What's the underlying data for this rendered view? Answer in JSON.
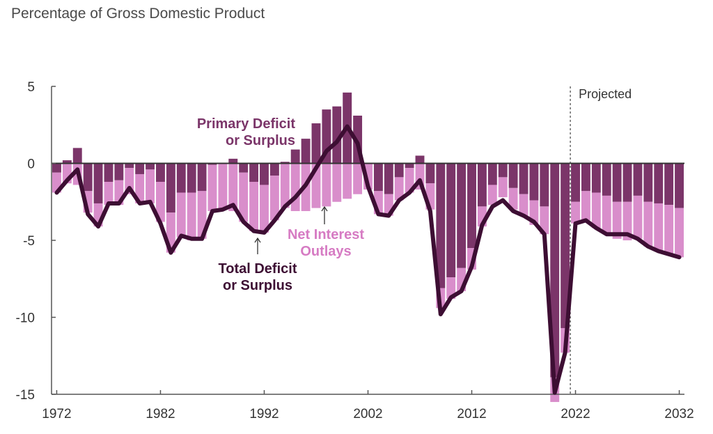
{
  "chart_data": {
    "type": "bar",
    "subtitle": "Percentage of Gross Domestic Product",
    "ylim": [
      -15,
      5
    ],
    "yticks": [
      5,
      0,
      -5,
      -10,
      -15
    ],
    "xticks": [
      1972,
      1982,
      1992,
      2002,
      2012,
      2022,
      2032
    ],
    "projected_from": 2022,
    "projected_label": "Projected",
    "colors": {
      "primary": "#7b3569",
      "interest": "#d98ecb",
      "total": "#3d0e33",
      "axis": "#555555"
    },
    "x": [
      1972,
      1973,
      1974,
      1975,
      1976,
      1977,
      1978,
      1979,
      1980,
      1981,
      1982,
      1983,
      1984,
      1985,
      1986,
      1987,
      1988,
      1989,
      1990,
      1991,
      1992,
      1993,
      1994,
      1995,
      1996,
      1997,
      1998,
      1999,
      2000,
      2001,
      2002,
      2003,
      2004,
      2005,
      2006,
      2007,
      2008,
      2009,
      2010,
      2011,
      2012,
      2013,
      2014,
      2015,
      2016,
      2017,
      2018,
      2019,
      2020,
      2021,
      2022,
      2023,
      2024,
      2025,
      2026,
      2027,
      2028,
      2029,
      2030,
      2031,
      2032
    ],
    "series": [
      {
        "name": "Primary Deficit or Surplus",
        "values": [
          -0.6,
          0.2,
          1.0,
          -1.8,
          -2.6,
          -1.2,
          -1.1,
          -0.3,
          -0.7,
          -0.4,
          -1.2,
          -3.2,
          -1.9,
          -1.9,
          -1.8,
          -0.1,
          0.0,
          0.3,
          -0.6,
          -1.2,
          -1.4,
          -0.8,
          0.1,
          0.9,
          1.6,
          2.6,
          3.5,
          3.7,
          4.6,
          3.1,
          0.0,
          -1.8,
          -2.0,
          -0.9,
          -0.3,
          0.5,
          -1.3,
          -8.1,
          -7.4,
          -6.8,
          -5.5,
          -2.8,
          -1.4,
          -0.9,
          -1.6,
          -2.0,
          -2.4,
          -2.8,
          -13.9,
          -10.7,
          -2.5,
          -1.8,
          -1.9,
          -2.1,
          -2.5,
          -2.5,
          -2.1,
          -2.5,
          -2.6,
          -2.7,
          -2.9
        ]
      },
      {
        "name": "Net Interest Outlays",
        "values": [
          -1.3,
          -1.3,
          -1.4,
          -1.4,
          -1.5,
          -1.5,
          -1.6,
          -1.7,
          -1.9,
          -2.2,
          -2.6,
          -2.6,
          -2.9,
          -3.1,
          -3.1,
          -3.0,
          -3.0,
          -3.1,
          -3.2,
          -3.2,
          -3.1,
          -2.9,
          -2.9,
          -3.1,
          -3.1,
          -2.9,
          -2.8,
          -2.5,
          -2.3,
          -2.0,
          -1.7,
          -1.5,
          -1.4,
          -1.5,
          -1.6,
          -1.7,
          -1.7,
          -1.3,
          -1.4,
          -1.5,
          -1.4,
          -1.3,
          -1.3,
          -1.3,
          -1.4,
          -1.4,
          -1.6,
          -1.8,
          -1.6,
          -1.6,
          -1.4,
          -1.9,
          -2.3,
          -2.5,
          -2.4,
          -2.5,
          -2.8,
          -2.9,
          -3.1,
          -3.2,
          -3.2
        ]
      },
      {
        "name": "Total Deficit or Surplus",
        "values": [
          -1.9,
          -1.1,
          -0.4,
          -3.3,
          -4.1,
          -2.6,
          -2.6,
          -1.6,
          -2.6,
          -2.5,
          -3.9,
          -5.8,
          -4.7,
          -4.9,
          -4.9,
          -3.1,
          -3.0,
          -2.7,
          -3.8,
          -4.4,
          -4.5,
          -3.7,
          -2.8,
          -2.2,
          -1.4,
          -0.3,
          0.8,
          1.4,
          2.4,
          1.3,
          -1.5,
          -3.3,
          -3.4,
          -2.4,
          -1.9,
          -1.1,
          -3.1,
          -9.8,
          -8.7,
          -8.3,
          -6.7,
          -4.0,
          -2.8,
          -2.4,
          -3.1,
          -3.4,
          -3.8,
          -4.6,
          -14.9,
          -12.3,
          -3.9,
          -3.7,
          -4.2,
          -4.6,
          -4.6,
          -4.6,
          -4.9,
          -5.4,
          -5.7,
          -5.9,
          -6.1
        ]
      }
    ],
    "annotations": {
      "primary": [
        "Primary Deficit",
        "or Surplus"
      ],
      "interest": [
        "Net Interest",
        "Outlays"
      ],
      "total": [
        "Total Deficit",
        "or Surplus"
      ]
    }
  }
}
